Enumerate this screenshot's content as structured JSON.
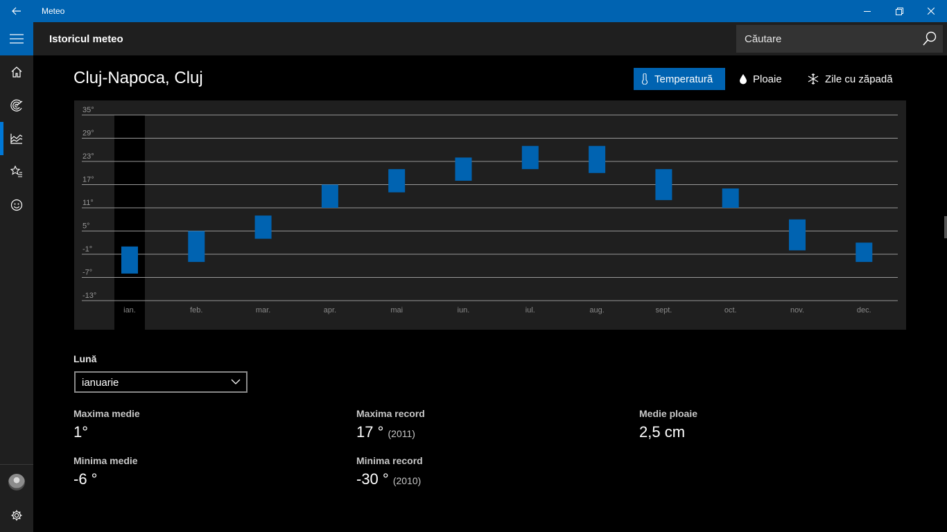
{
  "window": {
    "title": "Meteo"
  },
  "header": {
    "title": "Istoricul meteo",
    "search_placeholder": "Căutare"
  },
  "location": "Cluj-Napoca, Cluj",
  "toggles": [
    {
      "label": "Temperatură",
      "active": true,
      "icon": "thermometer-icon"
    },
    {
      "label": "Ploaie",
      "active": false,
      "icon": "raindrop-icon"
    },
    {
      "label": "Zile cu zăpadă",
      "active": false,
      "icon": "snowflake-icon"
    }
  ],
  "chart_data": {
    "type": "bar",
    "categories": [
      "ian.",
      "feb.",
      "mar.",
      "apr.",
      "mai",
      "iun.",
      "iul.",
      "aug.",
      "sept.",
      "oct.",
      "nov.",
      "dec."
    ],
    "series": [
      {
        "values_low": [
          -6,
          -3,
          3,
          11,
          15,
          18,
          21,
          20,
          13,
          11,
          0,
          -3
        ],
        "values_high": [
          1,
          5,
          9,
          17,
          21,
          24,
          27,
          27,
          21,
          16,
          8,
          2
        ]
      }
    ],
    "y_ticks": [
      -13,
      -7,
      -1,
      5,
      11,
      17,
      23,
      29,
      35
    ],
    "y_tick_labels": [
      "-13°",
      "-7°",
      "-1°",
      "5°",
      "11°",
      "17°",
      "23°",
      "29°",
      "35°"
    ],
    "ylim": [
      -13,
      35
    ],
    "selected_category": "ian.",
    "colors": {
      "bar": "#0063b1",
      "grid": "#9a9a9a",
      "selected_bg": "#000000"
    },
    "grid": true
  },
  "month_select": {
    "label": "Lună",
    "value": "ianuarie"
  },
  "stats": {
    "max_avg": {
      "label": "Maxima medie",
      "value": "1°"
    },
    "min_avg": {
      "label": "Minima medie",
      "value": "-6 °"
    },
    "max_record": {
      "label": "Maxima record",
      "value": "17 °",
      "year": "(2011)"
    },
    "min_record": {
      "label": "Minima record",
      "value": "-30 °",
      "year": "(2010)"
    },
    "rain_avg": {
      "label": "Medie ploaie",
      "value": "2,5 cm"
    }
  },
  "colors": {
    "accent": "#0063b1",
    "nav_bg": "#1f1f1f"
  },
  "nav_icons": [
    "home-icon",
    "forecast-icon",
    "historical-weather-icon",
    "favorites-icon",
    "feedback-icon",
    "avatar",
    "settings-icon"
  ]
}
